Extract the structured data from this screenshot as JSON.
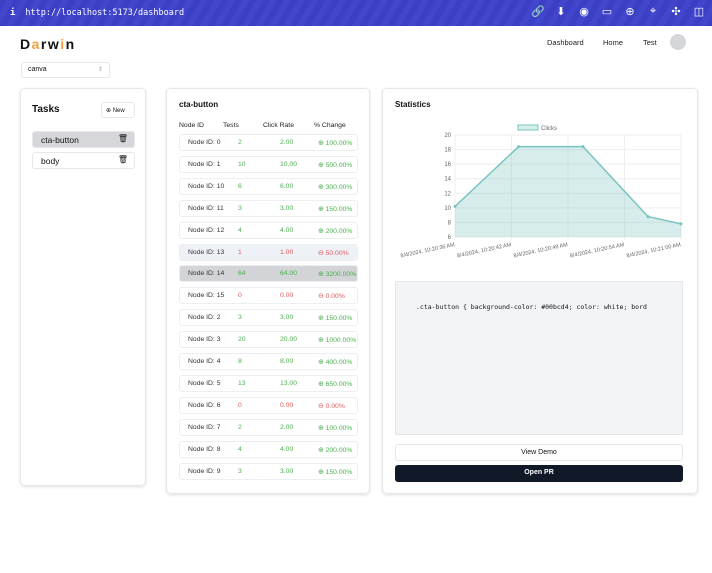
{
  "browser": {
    "url": "http://localhost:5173/dashboard",
    "info_icon": "info-icon",
    "tools": [
      "link-icon",
      "download-icon",
      "camera-icon",
      "terminal-icon",
      "globe-icon",
      "crosshair-icon",
      "extension-icon",
      "sidebar-icon"
    ]
  },
  "header": {
    "logo": [
      "D",
      "a",
      "rw",
      "i",
      "n"
    ],
    "nav": [
      "Dashboard",
      "Home",
      "Test"
    ]
  },
  "project_select": {
    "value": "canva"
  },
  "tasks": {
    "title": "Tasks",
    "new_label": "New",
    "items": [
      {
        "label": "cta-button",
        "selected": true
      },
      {
        "label": "body",
        "selected": false
      }
    ]
  },
  "nodes": {
    "title": "cta-button",
    "columns": [
      "Node ID",
      "Tests",
      "Click Rate",
      "% Change"
    ],
    "rows": [
      [
        "Node ID: 0",
        "2",
        "2.00",
        "100.00%",
        "up"
      ],
      [
        "Node ID: 1",
        "10",
        "10.00",
        "500.00%",
        "up"
      ],
      [
        "Node ID: 10",
        "6",
        "6.00",
        "300.00%",
        "up"
      ],
      [
        "Node ID: 11",
        "3",
        "3.00",
        "150.00%",
        "up"
      ],
      [
        "Node ID: 12",
        "4",
        "4.00",
        "200.00%",
        "up"
      ],
      [
        "Node ID: 13",
        "1",
        "1.00",
        "50.00%",
        "down"
      ],
      [
        "Node ID: 14",
        "64",
        "64.00",
        "3200.00%",
        "up"
      ],
      [
        "Node ID: 15",
        "0",
        "0.00",
        "0.00%",
        "down"
      ],
      [
        "Node ID: 2",
        "3",
        "3.00",
        "150.00%",
        "up"
      ],
      [
        "Node ID: 3",
        "20",
        "20.00",
        "1000.00%",
        "up"
      ],
      [
        "Node ID: 4",
        "8",
        "8.00",
        "400.00%",
        "up"
      ],
      [
        "Node ID: 5",
        "13",
        "13.00",
        "650.00%",
        "up"
      ],
      [
        "Node ID: 6",
        "0",
        "0.00",
        "0.00%",
        "down"
      ],
      [
        "Node ID: 7",
        "2",
        "2.00",
        "100.00%",
        "up"
      ],
      [
        "Node ID: 8",
        "4",
        "4.00",
        "200.00%",
        "up"
      ],
      [
        "Node ID: 9",
        "3",
        "3.00",
        "150.00%",
        "up"
      ]
    ]
  },
  "statistics": {
    "title": "Statistics",
    "code": ".cta-button { background-color: #00bcd4; color: white; bord",
    "view_demo": "View Demo",
    "open_pr": "Open PR"
  },
  "chart_data": {
    "type": "area",
    "legend": [
      "Clicks"
    ],
    "legend_placement": "top",
    "color": "#7ac4c0",
    "x_ticks": [
      "8/4/2024, 10:20:36 AM",
      "8/4/2024, 10:20:42 AM",
      "8/4/2024, 10:20:48 AM",
      "8/4/2024, 10:20:54 AM",
      "8/4/2024, 10:21:00 AM"
    ],
    "x_seconds_after_tick0": [
      0,
      6.75,
      13.6,
      20.5,
      24
    ],
    "values": [
      10.2,
      18.4,
      18.4,
      8.8,
      7.8
    ],
    "y_ticks": [
      6,
      8,
      10,
      12,
      14,
      16,
      18,
      20
    ],
    "ylim": [
      6,
      20
    ],
    "grid": true
  }
}
